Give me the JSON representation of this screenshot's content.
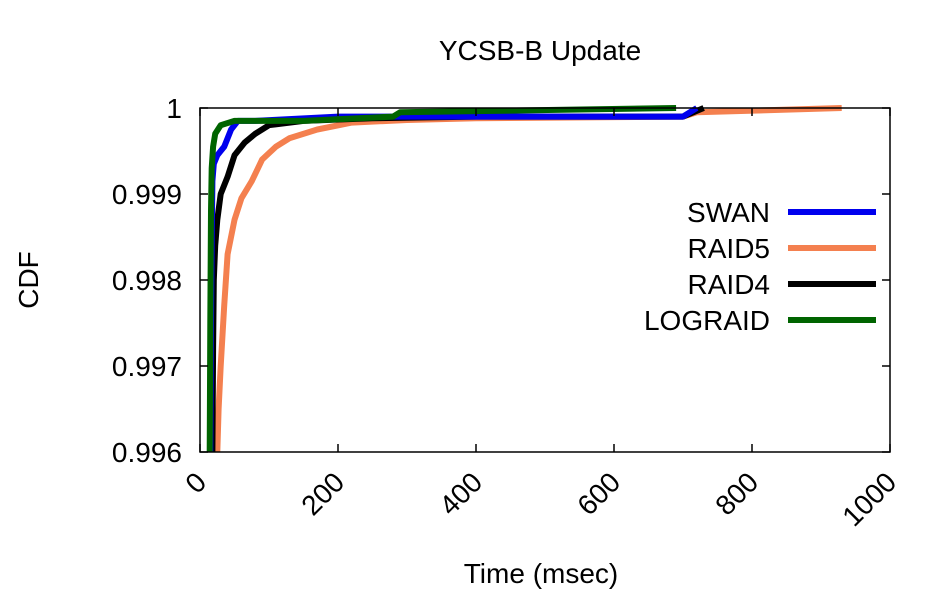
{
  "chart_data": {
    "type": "line",
    "title": "YCSB-B Update",
    "xlabel": "Time (msec)",
    "ylabel": "CDF",
    "xlim": [
      0,
      1000
    ],
    "ylim": [
      0.996,
      1.0
    ],
    "xticks": [
      "0",
      "200",
      "400",
      "600",
      "800",
      "1000"
    ],
    "yticks": [
      "0.996",
      "0.997",
      "0.998",
      "0.999",
      "1"
    ],
    "grid": false,
    "legend_position": "right",
    "series": [
      {
        "name": "SWAN",
        "color": "#0000ee",
        "points": [
          [
            15,
            0.996
          ],
          [
            16,
            0.9975
          ],
          [
            17,
            0.9985
          ],
          [
            18,
            0.99915
          ],
          [
            20,
            0.99935
          ],
          [
            25,
            0.99945
          ],
          [
            30,
            0.9995
          ],
          [
            35,
            0.99955
          ],
          [
            45,
            0.99975
          ],
          [
            55,
            0.99985
          ],
          [
            80,
            0.99985
          ],
          [
            200,
            0.9999
          ],
          [
            700,
            0.9999
          ],
          [
            720,
            1.0
          ]
        ]
      },
      {
        "name": "RAID5",
        "color": "#f4804f",
        "points": [
          [
            25,
            0.996
          ],
          [
            27,
            0.9965
          ],
          [
            30,
            0.997
          ],
          [
            35,
            0.9977
          ],
          [
            40,
            0.9983
          ],
          [
            50,
            0.9987
          ],
          [
            60,
            0.99895
          ],
          [
            75,
            0.99915
          ],
          [
            90,
            0.9994
          ],
          [
            110,
            0.99955
          ],
          [
            130,
            0.99965
          ],
          [
            170,
            0.99975
          ],
          [
            220,
            0.99983
          ],
          [
            300,
            0.99986
          ],
          [
            400,
            0.99988
          ],
          [
            700,
            0.9999
          ],
          [
            720,
            0.99995
          ],
          [
            930,
            1.0
          ]
        ]
      },
      {
        "name": "RAID4",
        "color": "#000000",
        "points": [
          [
            18,
            0.996
          ],
          [
            19,
            0.9972
          ],
          [
            20,
            0.998
          ],
          [
            22,
            0.9984
          ],
          [
            25,
            0.9987
          ],
          [
            30,
            0.999
          ],
          [
            40,
            0.9992
          ],
          [
            50,
            0.99945
          ],
          [
            65,
            0.9996
          ],
          [
            80,
            0.9997
          ],
          [
            100,
            0.9998
          ],
          [
            150,
            0.99985
          ],
          [
            250,
            0.99988
          ],
          [
            400,
            0.9999
          ],
          [
            700,
            0.9999
          ],
          [
            730,
            1.0
          ]
        ]
      },
      {
        "name": "LOGRAID",
        "color": "#006400",
        "points": [
          [
            14,
            0.996
          ],
          [
            15,
            0.9975
          ],
          [
            16,
            0.9988
          ],
          [
            17,
            0.9993
          ],
          [
            19,
            0.99955
          ],
          [
            22,
            0.9997
          ],
          [
            30,
            0.9998
          ],
          [
            50,
            0.99985
          ],
          [
            150,
            0.99985
          ],
          [
            280,
            0.9999
          ],
          [
            290,
            0.99995
          ],
          [
            690,
            1.0
          ]
        ]
      }
    ]
  }
}
